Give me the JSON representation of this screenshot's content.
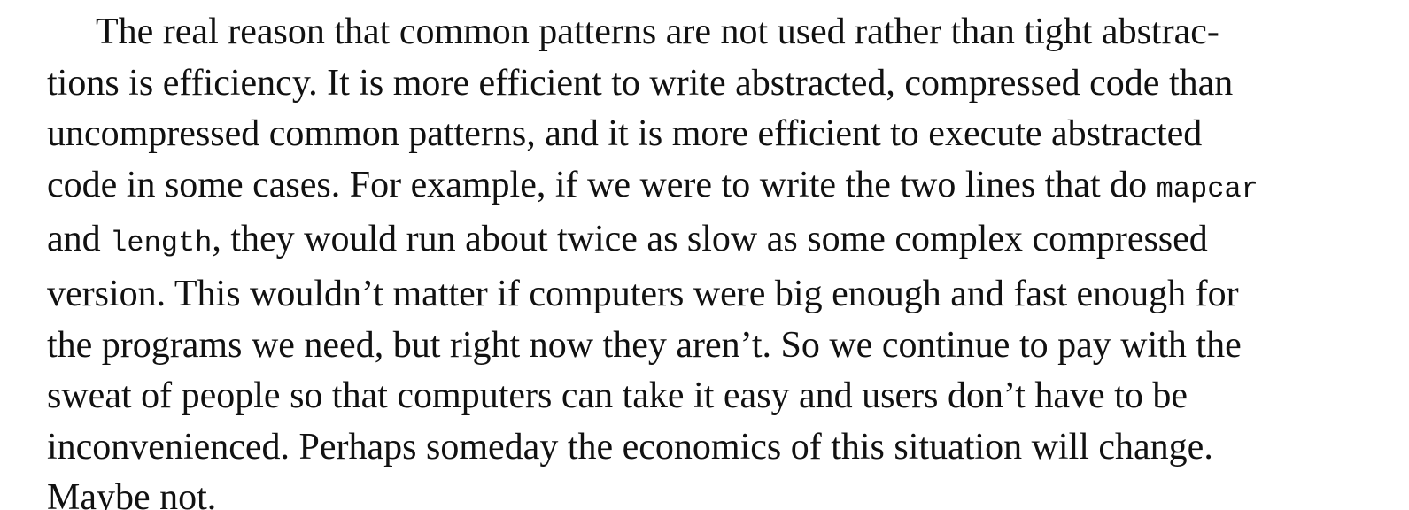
{
  "paragraph": {
    "lines": [
      "The real reason that common patterns are not used rather than tight abstrac-",
      "tions is efficiency. It is more efficient to write abstracted, compressed code than",
      "uncompressed common patterns, and it is more efficient to execute abstracted",
      "code in some cases. For example, if we were to write the two lines that do ",
      "mapcar",
      "and ",
      "length",
      ", they would run about twice as slow as some complex compressed",
      "version. This wouldn’t matter if computers were big enough and fast enough for",
      "the programs we need, but right now they aren’t. So we continue to pay with the",
      "sweat of people so that computers can take it easy and users don’t have to be",
      "inconvenienced. Perhaps someday the economics of this situation will change.",
      "Maybe not."
    ]
  }
}
